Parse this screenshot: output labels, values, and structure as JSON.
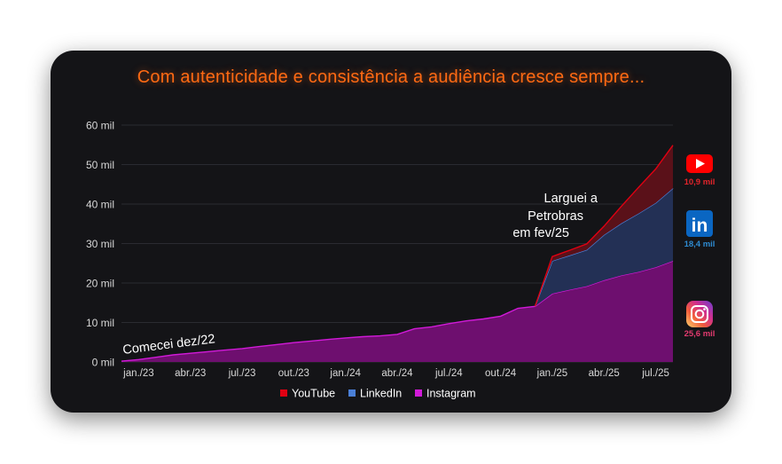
{
  "title": "Com autenticidade e consistência a audiência cresce sempre...",
  "colors": {
    "title": "#ff6a13",
    "youtube": "#e00012",
    "linkedin": "#4a7fd6",
    "instagram": "#d11ad8",
    "youtube_badge": "#ff0000",
    "linkedin_badge": "#0a66c2",
    "youtube_value": "#e3242b",
    "linkedin_value": "#2e8bd1",
    "instagram_value": "#e23a6f"
  },
  "chart_data": {
    "type": "area",
    "stacked": true,
    "title": "Com autenticidade e consistência a audiência cresce sempre...",
    "y_ticks": [
      "0 mil",
      "10 mil",
      "20 mil",
      "30 mil",
      "40 mil",
      "50 mil",
      "60 mil"
    ],
    "ylim": [
      0,
      60
    ],
    "y_unit": "mil",
    "x_tick_labels": [
      "jan./23",
      "abr./23",
      "jul./23",
      "out./23",
      "jan./24",
      "abr./24",
      "jul./24",
      "out./24",
      "jan./25",
      "abr./25",
      "jul./25"
    ],
    "x_tick_index": [
      0,
      3,
      6,
      9,
      12,
      15,
      18,
      21,
      24,
      27,
      30
    ],
    "x_months": [
      "dez/22",
      "jan/23",
      "fev/23",
      "mar/23",
      "abr/23",
      "mai/23",
      "jun/23",
      "jul/23",
      "ago/23",
      "set/23",
      "out/23",
      "nov/23",
      "dez/23",
      "jan/24",
      "fev/24",
      "mar/24",
      "abr/24",
      "mai/24",
      "jun/24",
      "jul/24",
      "ago/24",
      "set/24",
      "out/24",
      "nov/24",
      "dez/24",
      "jan/25",
      "fev/25",
      "mar/25",
      "abr/25",
      "mai/25",
      "jun/25",
      "jul/25",
      "ago/25"
    ],
    "x_start": -1,
    "series": [
      {
        "name": "Instagram",
        "values": [
          0.2,
          0.6,
          1.2,
          1.8,
          2.2,
          2.6,
          3.0,
          3.4,
          3.9,
          4.4,
          4.9,
          5.3,
          5.7,
          6.1,
          6.4,
          6.6,
          7.0,
          8.4,
          8.9,
          9.7,
          10.4,
          10.9,
          11.6,
          13.6,
          14.1,
          17.3,
          18.3,
          19.2,
          20.7,
          21.9,
          22.8,
          24.0,
          25.6
        ]
      },
      {
        "name": "LinkedIn",
        "values": [
          0,
          0,
          0,
          0,
          0,
          0,
          0,
          0,
          0,
          0,
          0,
          0,
          0,
          0,
          0,
          0,
          0,
          0,
          0,
          0,
          0,
          0,
          0,
          0,
          0,
          8.3,
          8.7,
          9.2,
          11.5,
          13.2,
          14.8,
          16.3,
          18.4
        ]
      },
      {
        "name": "YouTube",
        "values": [
          0,
          0,
          0,
          0,
          0,
          0,
          0,
          0,
          0,
          0,
          0,
          0,
          0,
          0,
          0,
          0,
          0,
          0,
          0,
          0,
          0,
          0,
          0,
          0,
          0,
          1.1,
          1.3,
          1.5,
          2.2,
          4.3,
          6.6,
          8.6,
          10.9
        ]
      }
    ],
    "legend": [
      "YouTube",
      "LinkedIn",
      "Instagram"
    ],
    "legend_position": "bottom",
    "annotations": [
      {
        "text": "Comecei dez/22"
      },
      {
        "lines": [
          "Larguei a",
          "Petrobras",
          "em fev/25"
        ]
      }
    ],
    "end_labels": [
      {
        "platform": "YouTube",
        "value": "10,9 mil"
      },
      {
        "platform": "LinkedIn",
        "value": "18,4 mil"
      },
      {
        "platform": "Instagram",
        "value": "25,6 mil"
      }
    ]
  }
}
